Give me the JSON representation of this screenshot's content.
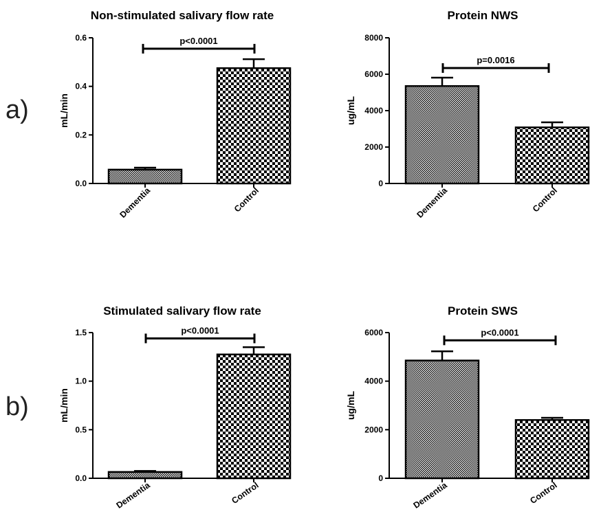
{
  "panel_labels": [
    "a)",
    "b)"
  ],
  "colors": {
    "bar_pattern_dark": "#000000",
    "bar_pattern_light": "#ffffff",
    "axis": "#000000"
  },
  "chart_data": [
    {
      "type": "bar",
      "title": "Non-stimulated salivary flow rate",
      "ylabel": "mL/min",
      "xlabel": "",
      "categories": [
        "Dementia",
        "Control"
      ],
      "values": [
        0.057,
        0.475
      ],
      "errors": [
        0.008,
        0.037
      ],
      "ylim": [
        0,
        0.6
      ],
      "yticks": [
        0.0,
        0.2,
        0.4,
        0.6
      ],
      "ytick_labels": [
        "0.0",
        "0.2",
        "0.4",
        "0.6"
      ],
      "significance": {
        "label": "p<0.0001",
        "y": 0.555
      },
      "grid": false,
      "legend": "none"
    },
    {
      "type": "bar",
      "title": "Protein NWS",
      "ylabel": "ug/mL",
      "xlabel": "",
      "categories": [
        "Dementia",
        "Control"
      ],
      "values": [
        5350,
        3080
      ],
      "errors": [
        460,
        280
      ],
      "ylim": [
        0,
        8000
      ],
      "yticks": [
        0,
        2000,
        4000,
        6000,
        8000
      ],
      "ytick_labels": [
        "0",
        "2000",
        "4000",
        "6000",
        "8000"
      ],
      "significance": {
        "label": "p=0.0016",
        "y": 6340
      },
      "grid": false,
      "legend": "none"
    },
    {
      "type": "bar",
      "title": "Stimulated salivary flow rate",
      "ylabel": "mL/min",
      "xlabel": "",
      "categories": [
        "Dementia",
        "Control"
      ],
      "values": [
        0.065,
        1.275
      ],
      "errors": [
        0.01,
        0.075
      ],
      "ylim": [
        0,
        1.5
      ],
      "yticks": [
        0.0,
        0.5,
        1.0,
        1.5
      ],
      "ytick_labels": [
        "0.0",
        "0.5",
        "1.0",
        "1.5"
      ],
      "significance": {
        "label": "p<0.0001",
        "y": 1.44
      },
      "grid": false,
      "legend": "none"
    },
    {
      "type": "bar",
      "title": "Protein SWS",
      "ylabel": "ug/mL",
      "xlabel": "",
      "categories": [
        "Dementia",
        "Control"
      ],
      "values": [
        4850,
        2400
      ],
      "errors": [
        380,
        90
      ],
      "ylim": [
        0,
        6000
      ],
      "yticks": [
        0,
        2000,
        4000,
        6000
      ],
      "ytick_labels": [
        "0",
        "2000",
        "4000",
        "6000"
      ],
      "significance": {
        "label": "p<0.0001",
        "y": 5680
      },
      "grid": false,
      "legend": "none"
    }
  ]
}
